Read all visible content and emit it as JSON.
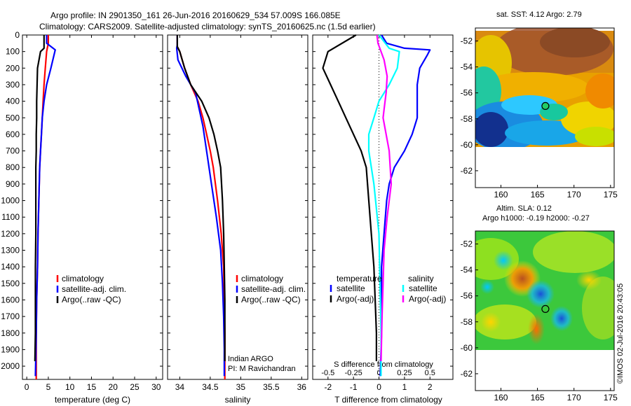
{
  "header": {
    "line1": "Argo profile: IN 2901350_161 26-Jun-2016 20160629_534 57.009S 166.085E",
    "line2": "Climatology: CARS2009. Satellite-adjusted climatology: synTS_20160625.nc (1.5d earlier)"
  },
  "colors": {
    "climatology": "#ff0000",
    "satellite": "#0000ff",
    "argo": "#000000",
    "sat_salinity": "#00ffff",
    "argo_salinity": "#ff00ff",
    "marker": "#22cc66"
  },
  "chart_data": [
    {
      "id": "temperature",
      "type": "line",
      "xlabel": "temperature (deg C)",
      "ylabel": "",
      "xlim": [
        -1,
        31.5
      ],
      "ylim": [
        2080,
        0
      ],
      "xticks": [
        "0",
        "5",
        "10",
        "15",
        "20",
        "25",
        "30"
      ],
      "yticks": [
        "0",
        "100",
        "200",
        "300",
        "400",
        "500",
        "600",
        "700",
        "800",
        "900",
        "1000",
        "1100",
        "1200",
        "1300",
        "1400",
        "1500",
        "1600",
        "1700",
        "1800",
        "1900",
        "2000"
      ],
      "legend": [
        "climatology",
        "satellite-adj. clim.",
        "Argo(..raw -QC)"
      ],
      "series": [
        {
          "name": "climatology",
          "color": "#ff0000",
          "x": [
            5.0,
            5.0,
            4.6,
            4.3,
            4.0,
            3.8,
            3.6,
            3.4,
            3.2,
            3.0,
            2.8,
            2.6,
            2.5,
            2.3,
            2.2,
            2.2
          ],
          "y": [
            0,
            50,
            100,
            200,
            300,
            400,
            500,
            600,
            700,
            800,
            1000,
            1200,
            1400,
            1600,
            1800,
            2080
          ]
        },
        {
          "name": "satellite-adj. clim.",
          "color": "#0000ff",
          "x": [
            4.6,
            4.6,
            6.6,
            5.6,
            4.6,
            4.0,
            3.6,
            3.4,
            3.2,
            3.0,
            2.8,
            2.6,
            2.5,
            2.3,
            2.2,
            2.0
          ],
          "y": [
            0,
            50,
            90,
            200,
            300,
            400,
            500,
            600,
            700,
            800,
            1000,
            1200,
            1400,
            1600,
            1800,
            2060
          ]
        },
        {
          "name": "Argo(..raw -QC)",
          "color": "#000000",
          "x": [
            4.0,
            4.0,
            3.2,
            2.5,
            2.4,
            2.3,
            2.3,
            2.2,
            2.2,
            2.1,
            2.1,
            2.1,
            2.0,
            2.0,
            2.0,
            1.9
          ],
          "y": [
            0,
            80,
            100,
            200,
            300,
            400,
            500,
            600,
            700,
            800,
            1000,
            1200,
            1400,
            1600,
            1800,
            1970
          ]
        }
      ]
    },
    {
      "id": "salinity",
      "type": "line",
      "xlabel": "salinity",
      "ylabel": "",
      "xlim": [
        33.8,
        36.1
      ],
      "ylim": [
        2080,
        0
      ],
      "xticks": [
        "34",
        "34.5",
        "35",
        "35.5",
        "36"
      ],
      "legend": [
        "climatology",
        "satellite-adj. clim.",
        "Argo(..raw -QC)"
      ],
      "annotation": [
        "Indian ARGO",
        "PI: M Ravichandran"
      ],
      "series": [
        {
          "name": "climatology",
          "color": "#ff0000",
          "x": [
            33.96,
            33.96,
            34.0,
            34.08,
            34.18,
            34.3,
            34.38,
            34.44,
            34.5,
            34.55,
            34.62,
            34.68,
            34.72,
            34.73,
            34.74,
            34.74
          ],
          "y": [
            0,
            70,
            100,
            200,
            300,
            400,
            500,
            600,
            700,
            800,
            1000,
            1200,
            1400,
            1600,
            1800,
            2080
          ]
        },
        {
          "name": "satellite-adj. clim.",
          "color": "#0000ff",
          "x": [
            33.96,
            33.96,
            33.95,
            33.97,
            34.1,
            34.26,
            34.32,
            34.38,
            34.42,
            34.46,
            34.52,
            34.6,
            34.67,
            34.7,
            34.72,
            34.73,
            34.73
          ],
          "y": [
            0,
            60,
            80,
            150,
            250,
            350,
            450,
            550,
            650,
            750,
            900,
            1100,
            1300,
            1500,
            1700,
            1900,
            2060
          ]
        },
        {
          "name": "Argo(..raw -QC)",
          "color": "#000000",
          "x": [
            33.96,
            33.96,
            34.0,
            34.08,
            34.18,
            34.36,
            34.48,
            34.56,
            34.62,
            34.67,
            34.7,
            34.72,
            34.73,
            34.74,
            34.74
          ],
          "y": [
            0,
            70,
            100,
            200,
            300,
            400,
            500,
            600,
            700,
            800,
            1000,
            1200,
            1400,
            1600,
            1970
          ]
        }
      ]
    },
    {
      "id": "difference",
      "type": "line",
      "xlabel": "T difference from climatology",
      "xlabel2": "S difference from climatology",
      "xlim": [
        -2.6,
        2.9
      ],
      "ylim": [
        2080,
        0
      ],
      "xticks": [
        "-2",
        "-1",
        "0",
        "1",
        "2"
      ],
      "xticks2": [
        "-0.5",
        "-0.25",
        "0",
        "0.25",
        "0.5"
      ],
      "legend_headers": [
        "temperature",
        "salinity"
      ],
      "legend": [
        "satellite",
        "Argo(-adj)",
        "satellite",
        "Argo(-adj)"
      ],
      "series": [
        {
          "name": "temperature satellite",
          "color": "#0000ff",
          "x": [
            0.1,
            0.3,
            1.0,
            2.0,
            1.9,
            1.6,
            1.5,
            1.5,
            1.5,
            1.4,
            1.3,
            1.0,
            0.6,
            0.4,
            0.3,
            0.2,
            0.1,
            0.1,
            0.1,
            0.05
          ],
          "y": [
            0,
            50,
            80,
            90,
            120,
            200,
            300,
            400,
            500,
            550,
            600,
            700,
            800,
            900,
            1000,
            1200,
            1400,
            1600,
            1800,
            2060
          ]
        },
        {
          "name": "temperature Argo(-adj)",
          "color": "#000000",
          "x": [
            -0.9,
            -2.0,
            -2.2,
            -1.9,
            -1.6,
            -1.3,
            -1.0,
            -0.7,
            -0.5,
            -0.4,
            -0.3,
            -0.2,
            -0.15,
            -0.1,
            -0.1
          ],
          "y": [
            0,
            100,
            200,
            300,
            400,
            500,
            600,
            700,
            800,
            1000,
            1200,
            1400,
            1600,
            1800,
            1970
          ]
        },
        {
          "name": "salinity satellite",
          "color": "#00ffff",
          "x": [
            0.0,
            0.1,
            0.2,
            0.18,
            0.1,
            0.0,
            -0.05,
            -0.1,
            -0.1,
            -0.05,
            0.0,
            0.01,
            0.02,
            0.02
          ],
          "y": [
            0,
            80,
            100,
            200,
            300,
            400,
            500,
            600,
            700,
            900,
            1200,
            1500,
            1800,
            2060
          ]
        },
        {
          "name": "salinity Argo(-adj)",
          "color": "#ff00ff",
          "x": [
            -0.02,
            -0.01,
            0.05,
            0.08,
            0.07,
            0.05,
            0.04,
            0.1,
            0.12,
            0.08,
            0.05,
            0.04,
            0.03,
            0.02
          ],
          "y": [
            0,
            50,
            150,
            250,
            350,
            450,
            500,
            700,
            900,
            1100,
            1300,
            1500,
            1700,
            1970
          ]
        }
      ]
    }
  ],
  "maps": {
    "sst": {
      "title": "sat. SST: 4.12 Argo: 2.79",
      "xticks": [
        "160",
        "165",
        "170",
        "175"
      ],
      "yticks": [
        "-52",
        "-54",
        "-56",
        "-58",
        "-60",
        "-62"
      ],
      "x_range": [
        156.5,
        175.5
      ],
      "y_range": [
        -51.0,
        -63.3
      ],
      "data_bottom": -60.0,
      "float": {
        "lon": 166.085,
        "lat": -57.009
      }
    },
    "sla": {
      "title_line1": "Altim. SLA: 0.12",
      "title_line2": "Argo h1000: -0.19 h2000: -0.27",
      "xticks": [
        "160",
        "165",
        "170",
        "175"
      ],
      "yticks": [
        "-52",
        "-54",
        "-56",
        "-58",
        "-60",
        "-62"
      ],
      "x_range": [
        156.5,
        175.5
      ],
      "y_range": [
        -51.0,
        -63.3
      ],
      "data_bottom": -60.0,
      "float": {
        "lon": 166.085,
        "lat": -57.009
      }
    }
  },
  "credit": "©IMOS 02-Jul-2016 20:43:05"
}
